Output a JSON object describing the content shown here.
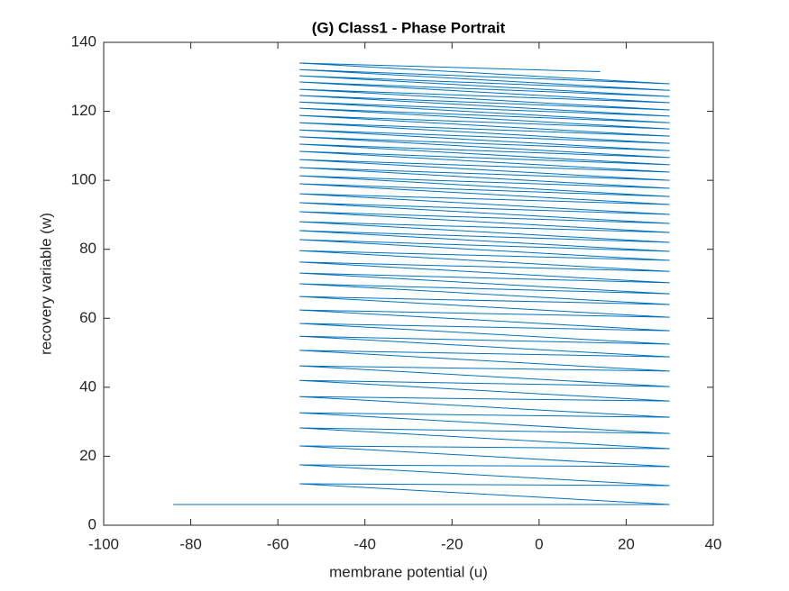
{
  "chart_data": {
    "type": "line",
    "title": "(G) Class1 - Phase Portrait",
    "x_label": "membrane potential (u)",
    "y_label": "recovery variable (w)",
    "color": "#0072bd",
    "x": [
      -60,
      -84,
      30,
      -55,
      30,
      -55,
      30,
      -55,
      30,
      -55,
      30,
      -55,
      30,
      -55,
      30,
      -55,
      30,
      -55,
      30,
      -55,
      30,
      -55,
      30,
      -55,
      30,
      -55,
      30,
      -55,
      30,
      -55,
      30,
      -55,
      30,
      -55,
      30,
      -55,
      30,
      -55,
      30,
      -55,
      30,
      -55,
      30,
      -55,
      30,
      -55,
      30,
      -55,
      30,
      -55,
      30,
      -55,
      30,
      -55,
      30,
      -55,
      30,
      -55,
      30,
      -55,
      30,
      -55,
      30,
      -55,
      30,
      -55,
      30,
      -55,
      30,
      -55,
      30,
      -55,
      30,
      -55,
      30,
      -55,
      30,
      -55,
      30,
      -55,
      30,
      -55,
      30,
      -55,
      14
    ],
    "values": [
      6,
      6,
      6,
      12,
      11.5,
      17.5,
      17,
      23,
      22.2,
      28.2,
      26.6,
      32.6,
      31.3,
      37.3,
      36,
      42,
      40.2,
      46.2,
      44.7,
      50.7,
      48.8,
      54.8,
      52.5,
      58.5,
      56.4,
      62.4,
      60.3,
      66.3,
      64,
      70,
      67.1,
      73.1,
      70.3,
      76.3,
      73.6,
      79.6,
      76.8,
      82.8,
      79.4,
      85.4,
      82,
      88,
      84.9,
      90.9,
      87.5,
      93.5,
      90.1,
      96.1,
      93,
      99,
      95.3,
      101.3,
      97.7,
      103.7,
      100,
      106,
      102.4,
      108.4,
      104.5,
      110.5,
      106.6,
      112.6,
      108.6,
      114.6,
      110.7,
      116.7,
      112.8,
      118.8,
      114.9,
      120.9,
      116.7,
      122.7,
      118.6,
      124.6,
      120.4,
      126.4,
      122.5,
      128.5,
      124.3,
      130.3,
      126.1,
      132.1,
      128,
      134,
      131.5
    ],
    "xlim": [
      -100,
      40
    ],
    "xticks": [
      -100,
      -80,
      -60,
      -40,
      -20,
      0,
      20,
      40
    ],
    "ylim": [
      0,
      140
    ],
    "yticks": [
      0,
      20,
      40,
      60,
      80,
      100,
      120,
      140
    ]
  }
}
